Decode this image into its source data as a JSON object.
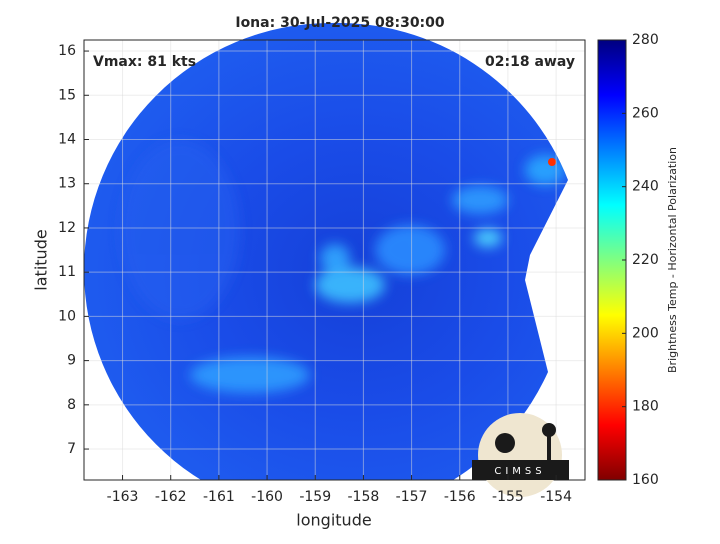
{
  "chart_data": {
    "type": "map",
    "title": "Iona: 30-Jul-2025 08:30:00",
    "xlabel": "longitude",
    "ylabel": "latitude",
    "annotations": [
      "Vmax: 81 kts",
      "02:18 away"
    ],
    "logo_text": "CIMSS",
    "xlim": [
      -163.8,
      -153.4
    ],
    "xticks": [
      -163,
      -162,
      -161,
      -160,
      -159,
      -158,
      -157,
      -156,
      -155,
      -154
    ],
    "ylim": [
      6.3,
      16.25
    ],
    "yticks": [
      7,
      8,
      9,
      10,
      11,
      12,
      13,
      14,
      15,
      16
    ],
    "grid": true,
    "colorbar": {
      "label": "Brightness Temp - Horizontal Polarization",
      "clim": [
        160,
        280
      ],
      "ticks": [
        160,
        180,
        200,
        220,
        240,
        260,
        280
      ],
      "colormap": [
        "#800000",
        "#ff0000",
        "#ff8000",
        "#ffff00",
        "#80ff80",
        "#00ffff",
        "#0080ff",
        "#0000ff",
        "#000080"
      ]
    }
  }
}
